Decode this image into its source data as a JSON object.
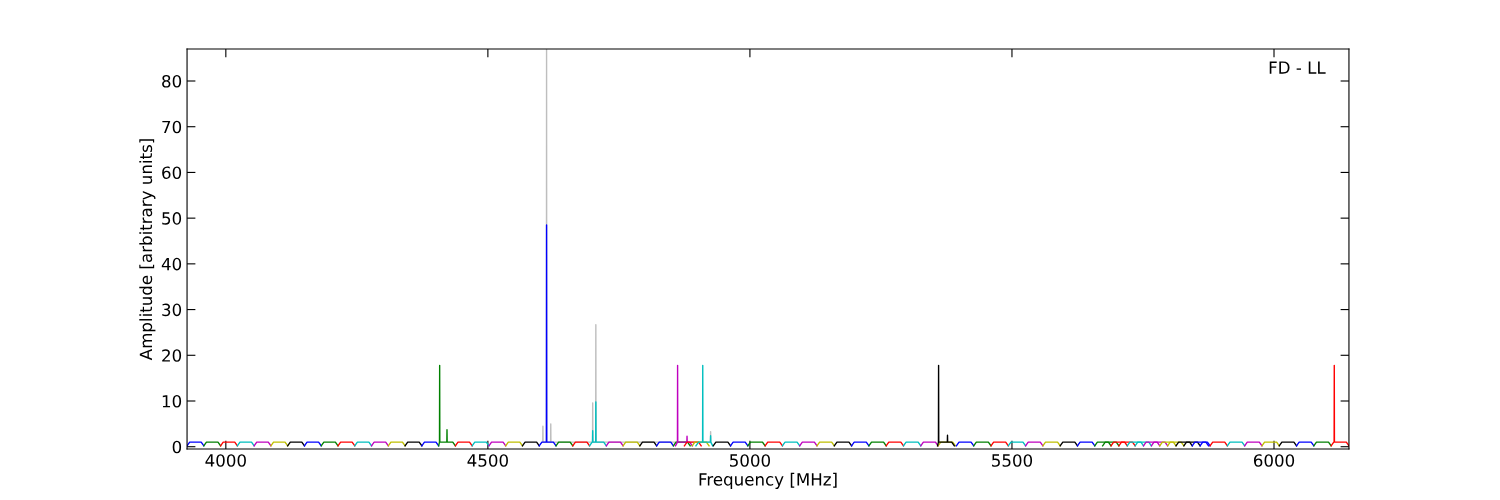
{
  "chart_data": {
    "type": "line",
    "xlabel": "Frequency [MHz]",
    "ylabel": "Amplitude [arbitrary units]",
    "annotations": [
      "FD - LL"
    ],
    "xlim": [
      3926,
      6143
    ],
    "ylim": [
      -0.5,
      87
    ],
    "xticks": [
      4000,
      4500,
      5000,
      5500,
      6000
    ],
    "yticks": [
      0,
      10,
      20,
      30,
      40,
      50,
      60,
      70,
      80
    ],
    "marker": "none",
    "line_style": "solid",
    "series": [
      {
        "color": "#bebebe",
        "x": [
          4604.7,
          4605,
          4605.3,
          4611.7,
          4612,
          4612.3,
          4619.7,
          4620,
          4620.3,
          4699.7,
          4700,
          4700.3,
          4705.7,
          4706,
          4706.3,
          4924.7,
          4925,
          4925.3
        ],
        "values": [
          1,
          4.5,
          1,
          1,
          87,
          1,
          1,
          5,
          1,
          1,
          9.6,
          1,
          1,
          26.7,
          1,
          1,
          3.3,
          1
        ]
      },
      {
        "color": "#0000ff",
        "x": [
          3926,
          3931,
          3953,
          3958
        ],
        "values": [
          0.2,
          1,
          1,
          0.2
        ]
      },
      {
        "color": "#008000",
        "x": [
          3958,
          3963,
          3985,
          3990
        ],
        "values": [
          0.2,
          1,
          1,
          0.2
        ]
      },
      {
        "color": "#ff0000",
        "x": [
          3990,
          3995,
          4017,
          4022
        ],
        "values": [
          0.2,
          1,
          1,
          0.2
        ]
      },
      {
        "color": "#00bfbf",
        "x": [
          4022,
          4027,
          4049,
          4054
        ],
        "values": [
          0.2,
          1,
          1,
          0.2
        ]
      },
      {
        "color": "#bf00bf",
        "x": [
          4054,
          4059,
          4081,
          4086
        ],
        "values": [
          0.2,
          1,
          1,
          0.2
        ]
      },
      {
        "color": "#bfbf00",
        "x": [
          4086,
          4091,
          4113,
          4118
        ],
        "values": [
          0.2,
          1,
          1,
          0.2
        ]
      },
      {
        "color": "#000000",
        "x": [
          4118,
          4123,
          4145,
          4150
        ],
        "values": [
          0.2,
          1,
          1,
          0.2
        ]
      },
      {
        "color": "#0000ff",
        "x": [
          4150,
          4155,
          4177,
          4182
        ],
        "values": [
          0.2,
          1,
          1,
          0.2
        ]
      },
      {
        "color": "#008000",
        "x": [
          4182,
          4187,
          4209,
          4214
        ],
        "values": [
          0.2,
          1,
          1,
          0.2
        ]
      },
      {
        "color": "#ff0000",
        "x": [
          4214,
          4219,
          4241,
          4246
        ],
        "values": [
          0.2,
          1,
          1,
          0.2
        ]
      },
      {
        "color": "#00bfbf",
        "x": [
          4246,
          4251,
          4273,
          4278
        ],
        "values": [
          0.2,
          1,
          1,
          0.2
        ]
      },
      {
        "color": "#bf00bf",
        "x": [
          4278,
          4283,
          4305,
          4310
        ],
        "values": [
          0.2,
          1,
          1,
          0.2
        ]
      },
      {
        "color": "#bfbf00",
        "x": [
          4310,
          4315,
          4337,
          4342
        ],
        "values": [
          0.2,
          1,
          1,
          0.2
        ]
      },
      {
        "color": "#000000",
        "x": [
          4342,
          4347,
          4369,
          4374
        ],
        "values": [
          0.2,
          1,
          1,
          0.2
        ]
      },
      {
        "color": "#0000ff",
        "x": [
          4374,
          4379,
          4401,
          4406
        ],
        "values": [
          0.2,
          1,
          1,
          0.2
        ]
      },
      {
        "color": "#008000",
        "x": [
          4406,
          4407.7,
          4408,
          4408.3,
          4411,
          4421.7,
          4422,
          4422.3,
          4433,
          4438
        ],
        "values": [
          0.2,
          1,
          17.8,
          1,
          1,
          1,
          3.7,
          1,
          1,
          0.2
        ]
      },
      {
        "color": "#ff0000",
        "x": [
          4438,
          4443,
          4465,
          4470
        ],
        "values": [
          0.2,
          1,
          1,
          0.2
        ]
      },
      {
        "color": "#00bfbf",
        "x": [
          4470,
          4475,
          4497,
          4502
        ],
        "values": [
          0.2,
          1,
          1,
          0.2
        ]
      },
      {
        "color": "#bf00bf",
        "x": [
          4502,
          4507,
          4529,
          4534
        ],
        "values": [
          0.2,
          1,
          1,
          0.2
        ]
      },
      {
        "color": "#bfbf00",
        "x": [
          4534,
          4539,
          4561,
          4566
        ],
        "values": [
          0.2,
          1,
          1,
          0.2
        ]
      },
      {
        "color": "#000000",
        "x": [
          4566,
          4571,
          4593,
          4598
        ],
        "values": [
          0.2,
          1,
          1,
          0.2
        ]
      },
      {
        "color": "#0000ff",
        "x": [
          4598,
          4603,
          4611.7,
          4612,
          4612.3,
          4625,
          4630
        ],
        "values": [
          0.2,
          1,
          1,
          48.5,
          1,
          1,
          0.2
        ]
      },
      {
        "color": "#008000",
        "x": [
          4630,
          4635,
          4657,
          4662
        ],
        "values": [
          0.2,
          1,
          1,
          0.2
        ]
      },
      {
        "color": "#ff0000",
        "x": [
          4662,
          4667,
          4689,
          4694
        ],
        "values": [
          0.2,
          1,
          1,
          0.2
        ]
      },
      {
        "color": "#00bfbf",
        "x": [
          4694,
          4699,
          4699.7,
          4700,
          4700.3,
          4705.7,
          4706,
          4706.3,
          4721,
          4726
        ],
        "values": [
          0.2,
          1,
          1,
          3.5,
          1,
          1,
          9.8,
          1,
          1,
          0.2
        ]
      },
      {
        "color": "#bf00bf",
        "x": [
          4726,
          4731,
          4753,
          4758
        ],
        "values": [
          0.2,
          1,
          1,
          0.2
        ]
      },
      {
        "color": "#bfbf00",
        "x": [
          4758,
          4763,
          4785,
          4790
        ],
        "values": [
          0.2,
          1,
          1,
          0.2
        ]
      },
      {
        "color": "#000000",
        "x": [
          4790,
          4795,
          4817,
          4822
        ],
        "values": [
          0.2,
          1,
          1,
          0.2
        ]
      },
      {
        "color": "#0000ff",
        "x": [
          4822,
          4827,
          4849,
          4854
        ],
        "values": [
          0.2,
          1,
          1,
          0.2
        ]
      },
      {
        "color": "#008000",
        "x": [
          4854,
          4859,
          4881,
          4886
        ],
        "values": [
          0.2,
          1,
          1,
          0.2
        ]
      },
      {
        "color": "#bf00bf",
        "x": [
          4858,
          4861.7,
          4862,
          4862.3,
          4879.7,
          4880,
          4880.3,
          4885,
          4890
        ],
        "values": [
          0.2,
          1,
          17.8,
          1,
          1,
          2.3,
          1,
          1,
          0.2
        ]
      },
      {
        "color": "#ff0000",
        "x": [
          4875,
          4880,
          4902,
          4907
        ],
        "values": [
          0.2,
          1,
          1,
          0.2
        ]
      },
      {
        "color": "#bfbf00",
        "x": [
          4890,
          4895,
          4917,
          4922
        ],
        "values": [
          0.2,
          1,
          1,
          0.2
        ]
      },
      {
        "color": "#00bfbf",
        "x": [
          4897,
          4902,
          4909.7,
          4910,
          4910.3,
          4922,
          4924.7,
          4925,
          4925.3,
          4929
        ],
        "values": [
          0.2,
          1,
          1,
          17.8,
          1,
          1,
          1,
          2.4,
          1,
          0.2
        ]
      },
      {
        "color": "#000000",
        "x": [
          4930,
          4935,
          4958,
          4963
        ],
        "values": [
          0.2,
          1,
          1,
          0.2
        ]
      },
      {
        "color": "#0000ff",
        "x": [
          4963,
          4968,
          4991,
          4996
        ],
        "values": [
          0.2,
          1,
          1,
          0.2
        ]
      },
      {
        "color": "#008000",
        "x": [
          4996,
          5001,
          5024,
          5029
        ],
        "values": [
          0.2,
          1,
          1,
          0.2
        ]
      },
      {
        "color": "#ff0000",
        "x": [
          5029,
          5034,
          5057,
          5062
        ],
        "values": [
          0.2,
          1,
          1,
          0.2
        ]
      },
      {
        "color": "#00bfbf",
        "x": [
          5062,
          5067,
          5090,
          5095
        ],
        "values": [
          0.2,
          1,
          1,
          0.2
        ]
      },
      {
        "color": "#bf00bf",
        "x": [
          5095,
          5100,
          5123,
          5128
        ],
        "values": [
          0.2,
          1,
          1,
          0.2
        ]
      },
      {
        "color": "#bfbf00",
        "x": [
          5128,
          5133,
          5156,
          5161
        ],
        "values": [
          0.2,
          1,
          1,
          0.2
        ]
      },
      {
        "color": "#000000",
        "x": [
          5161,
          5166,
          5189,
          5194
        ],
        "values": [
          0.2,
          1,
          1,
          0.2
        ]
      },
      {
        "color": "#0000ff",
        "x": [
          5194,
          5199,
          5222,
          5227
        ],
        "values": [
          0.2,
          1,
          1,
          0.2
        ]
      },
      {
        "color": "#008000",
        "x": [
          5227,
          5232,
          5255,
          5260
        ],
        "values": [
          0.2,
          1,
          1,
          0.2
        ]
      },
      {
        "color": "#ff0000",
        "x": [
          5260,
          5265,
          5288,
          5293
        ],
        "values": [
          0.2,
          1,
          1,
          0.2
        ]
      },
      {
        "color": "#00bfbf",
        "x": [
          5293,
          5298,
          5321,
          5326
        ],
        "values": [
          0.2,
          1,
          1,
          0.2
        ]
      },
      {
        "color": "#bf00bf",
        "x": [
          5326,
          5331,
          5354,
          5359
        ],
        "values": [
          0.2,
          1,
          1,
          0.2
        ]
      },
      {
        "color": "#bfbf00",
        "x": [
          5359,
          5364,
          5387,
          5392
        ],
        "values": [
          0.2,
          1,
          1,
          0.2
        ]
      },
      {
        "color": "#000000",
        "x": [
          5358,
          5359.7,
          5360,
          5360.3,
          5376.7,
          5377,
          5377.3,
          5385,
          5390
        ],
        "values": [
          0.2,
          1,
          17.8,
          1,
          1,
          2.5,
          1,
          1,
          0.2
        ]
      },
      {
        "color": "#0000ff",
        "x": [
          5394,
          5399,
          5422,
          5427
        ],
        "values": [
          0.2,
          1,
          1,
          0.2
        ]
      },
      {
        "color": "#008000",
        "x": [
          5427,
          5432,
          5455,
          5460
        ],
        "values": [
          0.2,
          1,
          1,
          0.2
        ]
      },
      {
        "color": "#ff0000",
        "x": [
          5460,
          5465,
          5488,
          5493
        ],
        "values": [
          0.2,
          1,
          1,
          0.2
        ]
      },
      {
        "color": "#00bfbf",
        "x": [
          5493,
          5498,
          5521,
          5526
        ],
        "values": [
          0.2,
          1,
          1,
          0.2
        ]
      },
      {
        "color": "#bf00bf",
        "x": [
          5526,
          5531,
          5554,
          5559
        ],
        "values": [
          0.2,
          1,
          1,
          0.2
        ]
      },
      {
        "color": "#bfbf00",
        "x": [
          5559,
          5564,
          5587,
          5592
        ],
        "values": [
          0.2,
          1,
          1,
          0.2
        ]
      },
      {
        "color": "#000000",
        "x": [
          5592,
          5597,
          5620,
          5625
        ],
        "values": [
          0.2,
          1,
          1,
          0.2
        ]
      },
      {
        "color": "#0000ff",
        "x": [
          5625,
          5630,
          5653,
          5658
        ],
        "values": [
          0.2,
          1,
          1,
          0.2
        ]
      },
      {
        "color": "#008000",
        "x": [
          5658,
          5663,
          5684,
          5689
        ],
        "values": [
          0.2,
          1,
          1,
          0.2
        ]
      },
      {
        "color": "#008000",
        "x": [
          5673,
          5678,
          5699,
          5704
        ],
        "values": [
          0.2,
          1,
          1,
          0.2
        ]
      },
      {
        "color": "#ff0000",
        "x": [
          5689,
          5694,
          5715,
          5720
        ],
        "values": [
          0.2,
          1,
          1,
          0.2
        ]
      },
      {
        "color": "#ff0000",
        "x": [
          5704,
          5709,
          5730,
          5735
        ],
        "values": [
          0.2,
          1,
          1,
          0.2
        ]
      },
      {
        "color": "#00bfbf",
        "x": [
          5720,
          5725,
          5746,
          5751
        ],
        "values": [
          0.2,
          1,
          1,
          0.2
        ]
      },
      {
        "color": "#00bfbf",
        "x": [
          5735,
          5740,
          5761,
          5766
        ],
        "values": [
          0.2,
          1,
          1,
          0.2
        ]
      },
      {
        "color": "#bf00bf",
        "x": [
          5751,
          5756,
          5777,
          5782
        ],
        "values": [
          0.2,
          1,
          1,
          0.2
        ]
      },
      {
        "color": "#bf00bf",
        "x": [
          5766,
          5771,
          5792,
          5797
        ],
        "values": [
          0.2,
          1,
          1,
          0.2
        ]
      },
      {
        "color": "#bfbf00",
        "x": [
          5782,
          5787,
          5808,
          5813
        ],
        "values": [
          0.2,
          1,
          1,
          0.2
        ]
      },
      {
        "color": "#bfbf00",
        "x": [
          5797,
          5802,
          5823,
          5828
        ],
        "values": [
          0.2,
          1,
          1,
          0.2
        ]
      },
      {
        "color": "#000000",
        "x": [
          5813,
          5818,
          5839,
          5844
        ],
        "values": [
          0.2,
          1,
          1,
          0.2
        ]
      },
      {
        "color": "#000000",
        "x": [
          5828,
          5833,
          5854,
          5859
        ],
        "values": [
          0.2,
          1,
          1,
          0.2
        ]
      },
      {
        "color": "#0000ff",
        "x": [
          5844,
          5849,
          5870,
          5875
        ],
        "values": [
          0.2,
          1,
          1,
          0.2
        ]
      },
      {
        "color": "#0000ff",
        "x": [
          5859,
          5864,
          5873,
          5878
        ],
        "values": [
          0.2,
          1,
          1,
          0.2
        ]
      },
      {
        "color": "#ff0000",
        "x": [
          5878,
          5883,
          5906,
          5911
        ],
        "values": [
          0.2,
          1,
          1,
          0.2
        ]
      },
      {
        "color": "#00bfbf",
        "x": [
          5911,
          5916,
          5939,
          5944
        ],
        "values": [
          0.2,
          1,
          1,
          0.2
        ]
      },
      {
        "color": "#bf00bf",
        "x": [
          5944,
          5949,
          5972,
          5977
        ],
        "values": [
          0.2,
          1,
          1,
          0.2
        ]
      },
      {
        "color": "#bfbf00",
        "x": [
          5977,
          5982,
          6005,
          6010
        ],
        "values": [
          0.2,
          1,
          1,
          0.2
        ]
      },
      {
        "color": "#000000",
        "x": [
          6010,
          6015,
          6038,
          6043
        ],
        "values": [
          0.2,
          1,
          1,
          0.2
        ]
      },
      {
        "color": "#0000ff",
        "x": [
          6043,
          6048,
          6071,
          6076
        ],
        "values": [
          0.2,
          1,
          1,
          0.2
        ]
      },
      {
        "color": "#008000",
        "x": [
          6076,
          6081,
          6104,
          6109
        ],
        "values": [
          0.2,
          1,
          1,
          0.2
        ]
      },
      {
        "color": "#ff0000",
        "x": [
          6109,
          6114,
          6114.7,
          6115,
          6115.3,
          6138,
          6143
        ],
        "values": [
          0.2,
          1,
          1,
          17.8,
          1,
          1,
          0.2
        ]
      }
    ]
  }
}
